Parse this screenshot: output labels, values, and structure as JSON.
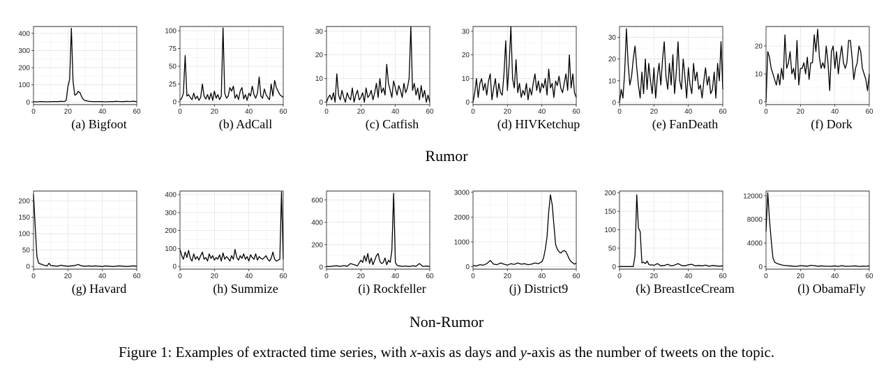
{
  "figure": {
    "caption_prefix": "Figure 1: Examples of extracted time series, with ",
    "caption_x": "x",
    "caption_mid": "-axis as days and ",
    "caption_y": "y",
    "caption_suffix": "-axis as the number of tweets on the topic."
  },
  "groups": [
    {
      "label": "Rumor"
    },
    {
      "label": "Non-Rumor"
    }
  ],
  "chart_data": [
    {
      "type": "line",
      "title": "(a)  Bigfoot",
      "xlim": [
        0,
        60
      ],
      "ylim": [
        -15,
        440
      ],
      "xticks": [
        0,
        20,
        40,
        60
      ],
      "yticks": [
        0,
        100,
        200,
        300,
        400
      ],
      "x": [
        0,
        2,
        4,
        6,
        8,
        10,
        12,
        14,
        16,
        18,
        19,
        20,
        21,
        22,
        23,
        24,
        25,
        26,
        27,
        28,
        29,
        30,
        32,
        34,
        36,
        38,
        40,
        42,
        44,
        46,
        48,
        50,
        52,
        54,
        56,
        58,
        60
      ],
      "y": [
        2,
        1,
        3,
        2,
        1,
        2,
        3,
        2,
        4,
        3,
        10,
        90,
        130,
        430,
        120,
        40,
        45,
        62,
        55,
        30,
        15,
        8,
        4,
        3,
        2,
        3,
        2,
        1,
        3,
        2,
        4,
        3,
        2,
        4,
        3,
        5,
        2
      ]
    },
    {
      "type": "line",
      "title": "(b)  AdCall",
      "xlim": [
        0,
        60
      ],
      "ylim": [
        -4,
        106
      ],
      "xticks": [
        0,
        20,
        40,
        60
      ],
      "yticks": [
        0,
        25,
        50,
        75,
        100
      ],
      "x": [
        0,
        1,
        2,
        3,
        4,
        5,
        6,
        7,
        8,
        9,
        10,
        11,
        12,
        13,
        14,
        15,
        16,
        17,
        18,
        19,
        20,
        21,
        22,
        23,
        24,
        25,
        26,
        27,
        28,
        29,
        30,
        31,
        32,
        33,
        34,
        35,
        36,
        37,
        38,
        39,
        40,
        41,
        42,
        43,
        44,
        45,
        46,
        47,
        48,
        49,
        50,
        51,
        52,
        53,
        54,
        55,
        56,
        57,
        58,
        59,
        60
      ],
      "y": [
        2,
        5,
        12,
        65,
        8,
        10,
        6,
        3,
        12,
        4,
        8,
        2,
        6,
        25,
        8,
        4,
        10,
        3,
        12,
        2,
        15,
        5,
        10,
        3,
        8,
        104,
        12,
        5,
        8,
        20,
        15,
        22,
        5,
        10,
        3,
        15,
        20,
        4,
        10,
        2,
        12,
        8,
        22,
        10,
        5,
        12,
        35,
        8,
        5,
        18,
        10,
        6,
        3,
        25,
        8,
        30,
        20,
        15,
        10,
        8,
        6
      ]
    },
    {
      "type": "line",
      "title": "(c)  Catfish",
      "xlim": [
        0,
        60
      ],
      "ylim": [
        -1,
        32
      ],
      "xticks": [
        0,
        20,
        40,
        60
      ],
      "yticks": [
        0,
        10,
        20,
        30
      ],
      "x": [
        0,
        1,
        2,
        3,
        4,
        5,
        6,
        7,
        8,
        9,
        10,
        11,
        12,
        13,
        14,
        15,
        16,
        17,
        18,
        19,
        20,
        21,
        22,
        23,
        24,
        25,
        26,
        27,
        28,
        29,
        30,
        31,
        32,
        33,
        34,
        35,
        36,
        37,
        38,
        39,
        40,
        41,
        42,
        43,
        44,
        45,
        46,
        47,
        48,
        49,
        50,
        51,
        52,
        53,
        54,
        55,
        56,
        57,
        58,
        59,
        60
      ],
      "y": [
        0,
        2,
        3,
        1,
        4,
        0,
        12,
        3,
        1,
        5,
        2,
        0,
        4,
        2,
        1,
        6,
        0,
        3,
        5,
        1,
        2,
        4,
        0,
        6,
        2,
        3,
        5,
        1,
        4,
        8,
        2,
        10,
        4,
        6,
        3,
        16,
        8,
        5,
        2,
        9,
        6,
        3,
        7,
        5,
        2,
        8,
        4,
        6,
        10,
        32,
        5,
        8,
        3,
        6,
        1,
        7,
        2,
        5,
        0,
        3,
        0
      ]
    },
    {
      "type": "line",
      "title": "(d)  HIVKetchup",
      "xlim": [
        0,
        60
      ],
      "ylim": [
        -1,
        32
      ],
      "xticks": [
        0,
        20,
        40,
        60
      ],
      "yticks": [
        0,
        10,
        20,
        30
      ],
      "x": [
        0,
        1,
        2,
        3,
        4,
        5,
        6,
        7,
        8,
        9,
        10,
        11,
        12,
        13,
        14,
        15,
        16,
        17,
        18,
        19,
        20,
        21,
        22,
        23,
        24,
        25,
        26,
        27,
        28,
        29,
        30,
        31,
        32,
        33,
        34,
        35,
        36,
        37,
        38,
        39,
        40,
        41,
        42,
        43,
        44,
        45,
        46,
        47,
        48,
        49,
        50,
        51,
        52,
        53,
        54,
        55,
        56,
        57,
        58,
        59,
        60
      ],
      "y": [
        0,
        4,
        10,
        2,
        8,
        10,
        5,
        8,
        3,
        9,
        12,
        1,
        6,
        10,
        2,
        8,
        4,
        3,
        12,
        26,
        5,
        16,
        32,
        10,
        6,
        18,
        4,
        8,
        2,
        5,
        3,
        8,
        1,
        6,
        3,
        8,
        12,
        5,
        9,
        4,
        8,
        6,
        10,
        3,
        14,
        6,
        8,
        2,
        9,
        7,
        11,
        6,
        4,
        8,
        12,
        5,
        20,
        6,
        12,
        4,
        2
      ]
    },
    {
      "type": "line",
      "title": "(e)  FanDeath",
      "xlim": [
        0,
        60
      ],
      "ylim": [
        -1,
        35
      ],
      "xticks": [
        0,
        20,
        40,
        60
      ],
      "yticks": [
        0,
        10,
        20,
        30
      ],
      "x": [
        0,
        1,
        2,
        3,
        4,
        5,
        6,
        7,
        8,
        9,
        10,
        11,
        12,
        13,
        14,
        15,
        16,
        17,
        18,
        19,
        20,
        21,
        22,
        23,
        24,
        25,
        26,
        27,
        28,
        29,
        30,
        31,
        32,
        33,
        34,
        35,
        36,
        37,
        38,
        39,
        40,
        41,
        42,
        43,
        44,
        45,
        46,
        47,
        48,
        49,
        50,
        51,
        52,
        53,
        54,
        55,
        56,
        57,
        58,
        59,
        60
      ],
      "y": [
        0,
        6,
        2,
        14,
        34,
        18,
        8,
        12,
        20,
        26,
        16,
        8,
        2,
        14,
        4,
        20,
        6,
        18,
        10,
        4,
        16,
        2,
        12,
        18,
        8,
        20,
        28,
        12,
        6,
        18,
        8,
        22,
        4,
        14,
        28,
        10,
        6,
        20,
        12,
        2,
        16,
        8,
        4,
        18,
        10,
        14,
        6,
        8,
        2,
        10,
        16,
        8,
        12,
        4,
        6,
        14,
        2,
        18,
        10,
        28,
        6
      ]
    },
    {
      "type": "line",
      "title": "(f)  Dork",
      "xlim": [
        0,
        60
      ],
      "ylim": [
        -1,
        27
      ],
      "xticks": [
        0,
        20,
        40,
        60
      ],
      "yticks": [
        0,
        10,
        20
      ],
      "x": [
        0,
        1,
        2,
        3,
        4,
        5,
        6,
        7,
        8,
        9,
        10,
        11,
        12,
        13,
        14,
        15,
        16,
        17,
        18,
        19,
        20,
        21,
        22,
        23,
        24,
        25,
        26,
        27,
        28,
        29,
        30,
        31,
        32,
        33,
        34,
        35,
        36,
        37,
        38,
        39,
        40,
        41,
        42,
        43,
        44,
        45,
        46,
        47,
        48,
        49,
        50,
        51,
        52,
        53,
        54,
        55,
        56,
        57,
        58,
        59,
        60
      ],
      "y": [
        0,
        18,
        16,
        12,
        10,
        8,
        6,
        10,
        6,
        12,
        8,
        24,
        12,
        14,
        18,
        10,
        12,
        8,
        22,
        6,
        12,
        12,
        14,
        10,
        16,
        8,
        14,
        14,
        24,
        18,
        26,
        16,
        12,
        14,
        12,
        20,
        14,
        4,
        18,
        20,
        12,
        18,
        10,
        16,
        20,
        14,
        12,
        14,
        22,
        22,
        16,
        8,
        12,
        14,
        20,
        18,
        12,
        10,
        8,
        4,
        10
      ]
    },
    {
      "type": "line",
      "title": "(g)  Havard",
      "xlim": [
        0,
        60
      ],
      "ylim": [
        -8,
        230
      ],
      "xticks": [
        0,
        20,
        40,
        60
      ],
      "yticks": [
        0,
        50,
        100,
        150,
        200
      ],
      "x": [
        0,
        1,
        2,
        3,
        4,
        5,
        6,
        7,
        8,
        9,
        10,
        12,
        14,
        16,
        18,
        20,
        22,
        24,
        26,
        28,
        30,
        32,
        34,
        36,
        38,
        40,
        42,
        44,
        46,
        48,
        50,
        52,
        54,
        56,
        58,
        60
      ],
      "y": [
        220,
        120,
        30,
        10,
        8,
        6,
        4,
        3,
        2,
        10,
        3,
        2,
        1,
        4,
        2,
        1,
        2,
        3,
        6,
        2,
        1,
        2,
        1,
        2,
        1,
        0,
        2,
        1,
        0,
        1,
        2,
        1,
        0,
        1,
        2,
        1
      ],
      "note": "figure caption text reads 'Havard'"
    },
    {
      "type": "line",
      "title": "(h)  Summize",
      "xlim": [
        0,
        60
      ],
      "ylim": [
        -15,
        420
      ],
      "xticks": [
        0,
        20,
        40,
        60
      ],
      "yticks": [
        0,
        100,
        200,
        300,
        400
      ],
      "x": [
        0,
        1,
        2,
        3,
        4,
        5,
        6,
        7,
        8,
        9,
        10,
        11,
        12,
        13,
        14,
        15,
        16,
        17,
        18,
        19,
        20,
        21,
        22,
        23,
        24,
        25,
        26,
        27,
        28,
        29,
        30,
        31,
        32,
        33,
        34,
        35,
        36,
        37,
        38,
        39,
        40,
        41,
        42,
        43,
        44,
        45,
        46,
        47,
        48,
        49,
        50,
        51,
        52,
        53,
        54,
        55,
        56,
        57,
        58,
        59,
        60
      ],
      "y": [
        95,
        60,
        40,
        80,
        50,
        90,
        45,
        30,
        70,
        40,
        55,
        35,
        60,
        80,
        40,
        50,
        30,
        70,
        45,
        60,
        35,
        50,
        40,
        65,
        30,
        75,
        40,
        55,
        45,
        30,
        60,
        40,
        95,
        50,
        35,
        60,
        45,
        70,
        40,
        55,
        30,
        65,
        50,
        40,
        70,
        35,
        55,
        45,
        40,
        50,
        60,
        40,
        30,
        45,
        80,
        40,
        30,
        35,
        40,
        415,
        40
      ]
    },
    {
      "type": "line",
      "title": "(i)  Rockfeller",
      "xlim": [
        0,
        60
      ],
      "ylim": [
        -20,
        680
      ],
      "xticks": [
        0,
        20,
        40,
        60
      ],
      "yticks": [
        0,
        200,
        400,
        600
      ],
      "x": [
        0,
        2,
        4,
        6,
        8,
        10,
        12,
        14,
        16,
        18,
        20,
        21,
        22,
        23,
        24,
        25,
        26,
        27,
        28,
        29,
        30,
        31,
        32,
        33,
        34,
        35,
        36,
        37,
        38,
        39,
        40,
        41,
        42,
        44,
        46,
        48,
        50,
        52,
        54,
        56,
        58,
        60
      ],
      "y": [
        5,
        3,
        8,
        10,
        5,
        12,
        6,
        30,
        20,
        10,
        60,
        40,
        100,
        50,
        120,
        30,
        80,
        20,
        60,
        100,
        120,
        50,
        30,
        40,
        80,
        20,
        60,
        40,
        150,
        660,
        40,
        15,
        10,
        5,
        8,
        4,
        10,
        6,
        30,
        5,
        8,
        4
      ],
      "note": "figure caption text reads 'Rockfeller'"
    },
    {
      "type": "line",
      "title": "(j)  District9",
      "xlim": [
        0,
        60
      ],
      "ylim": [
        -100,
        3050
      ],
      "xticks": [
        0,
        20,
        40,
        60
      ],
      "yticks": [
        0,
        1000,
        2000,
        3000
      ],
      "x": [
        0,
        2,
        4,
        6,
        8,
        10,
        12,
        14,
        16,
        18,
        20,
        22,
        24,
        26,
        28,
        30,
        32,
        34,
        36,
        38,
        40,
        41,
        42,
        43,
        44,
        45,
        46,
        47,
        48,
        49,
        50,
        51,
        52,
        53,
        54,
        55,
        56,
        57,
        58,
        59,
        60
      ],
      "y": [
        50,
        30,
        80,
        60,
        120,
        250,
        100,
        80,
        150,
        100,
        60,
        120,
        90,
        150,
        100,
        120,
        80,
        100,
        150,
        120,
        200,
        350,
        700,
        1200,
        2200,
        2900,
        2500,
        1700,
        900,
        700,
        600,
        550,
        620,
        650,
        600,
        450,
        300,
        200,
        150,
        100,
        150
      ]
    },
    {
      "type": "line",
      "title": "(k)  BreastIceCream",
      "xlim": [
        0,
        60
      ],
      "ylim": [
        -7,
        205
      ],
      "xticks": [
        0,
        20,
        40,
        60
      ],
      "yticks": [
        0,
        50,
        100,
        150,
        200
      ],
      "x": [
        0,
        2,
        4,
        6,
        8,
        9,
        10,
        11,
        12,
        13,
        14,
        15,
        16,
        17,
        18,
        19,
        20,
        22,
        24,
        26,
        28,
        30,
        32,
        34,
        36,
        38,
        40,
        42,
        44,
        46,
        48,
        50,
        52,
        54,
        56,
        58,
        60
      ],
      "y": [
        0,
        0,
        0,
        0,
        0,
        30,
        195,
        105,
        95,
        10,
        12,
        8,
        15,
        6,
        4,
        5,
        3,
        8,
        2,
        3,
        6,
        2,
        4,
        8,
        3,
        2,
        5,
        6,
        2,
        3,
        2,
        4,
        1,
        3,
        2,
        1,
        2
      ]
    },
    {
      "type": "line",
      "title": "(l)  ObamaFly",
      "xlim": [
        0,
        60
      ],
      "ylim": [
        -400,
        12800
      ],
      "xticks": [
        0,
        20,
        40,
        60
      ],
      "yticks": [
        0,
        4000,
        8000,
        12000
      ],
      "x": [
        0,
        1,
        2,
        3,
        4,
        5,
        6,
        8,
        10,
        12,
        14,
        16,
        18,
        20,
        22,
        24,
        26,
        28,
        30,
        32,
        34,
        36,
        38,
        40,
        42,
        44,
        46,
        48,
        50,
        52,
        54,
        56,
        58,
        60
      ],
      "y": [
        6000,
        12500,
        8000,
        4500,
        1500,
        800,
        600,
        400,
        250,
        200,
        150,
        100,
        80,
        200,
        150,
        100,
        250,
        200,
        100,
        150,
        120,
        80,
        100,
        150,
        60,
        200,
        100,
        80,
        120,
        150,
        60,
        100,
        80,
        150
      ]
    }
  ]
}
